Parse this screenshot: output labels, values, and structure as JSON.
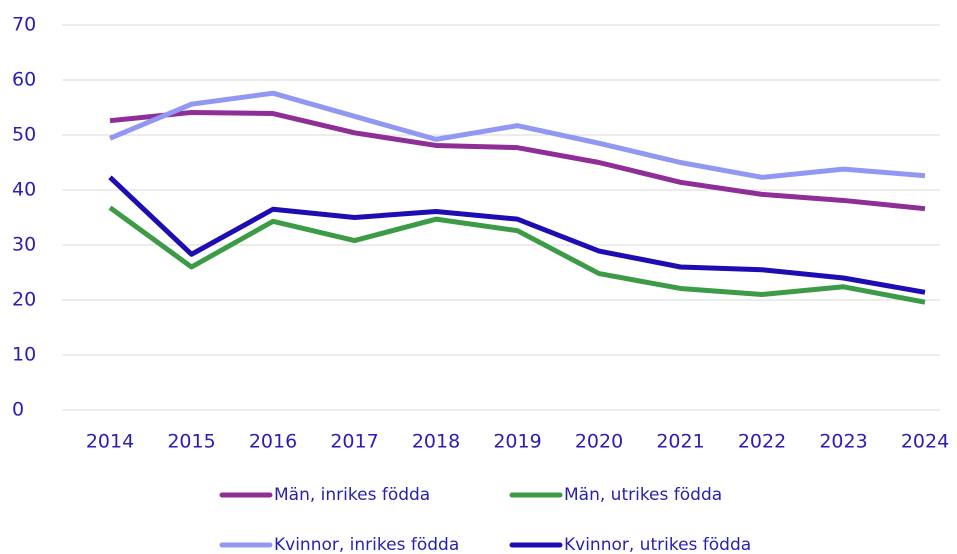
{
  "chart_data": {
    "type": "line",
    "categories": [
      "2014",
      "2015",
      "2016",
      "2017",
      "2018",
      "2019",
      "2020",
      "2021",
      "2022",
      "2023",
      "2024"
    ],
    "series": [
      {
        "name": "Män, inrikes födda",
        "color": "#8e2e96",
        "values": [
          52.6,
          54.1,
          53.9,
          50.4,
          48.1,
          47.7,
          45.0,
          41.4,
          39.2,
          38.1,
          36.6
        ]
      },
      {
        "name": "Män, utrikes födda",
        "color": "#3b9b47",
        "values": [
          36.8,
          26.0,
          34.3,
          30.8,
          34.7,
          32.6,
          24.8,
          22.1,
          21.0,
          22.4,
          19.6
        ]
      },
      {
        "name": "Kvinnor, inrikes födda",
        "color": "#9298f2",
        "values": [
          49.4,
          55.6,
          57.6,
          53.4,
          49.2,
          51.7,
          48.5,
          45.0,
          42.3,
          43.8,
          42.6
        ]
      },
      {
        "name": "Kvinnor, utrikes födda",
        "color": "#1d0db2",
        "values": [
          42.3,
          28.3,
          36.5,
          35.0,
          36.1,
          34.7,
          28.9,
          26.0,
          25.5,
          24.0,
          21.4
        ]
      }
    ],
    "ylim": [
      0,
      70
    ],
    "yticks": [
      0,
      10,
      20,
      30,
      40,
      50,
      60,
      70
    ],
    "grid": true
  }
}
